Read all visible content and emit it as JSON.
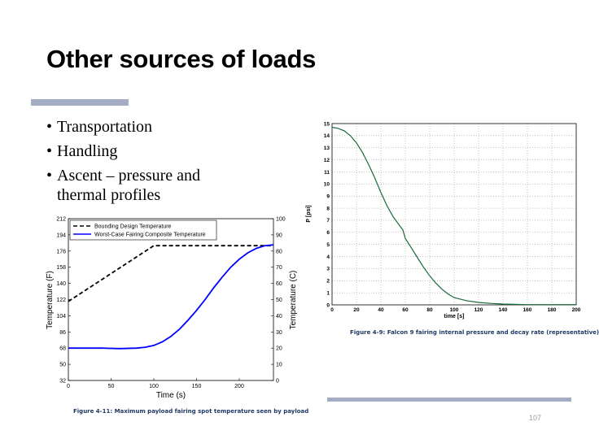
{
  "slide": {
    "title": "Other sources of loads",
    "bullets": [
      "Transportation",
      "Handling",
      "Ascent – pressure and thermal profiles"
    ],
    "page_number": "107"
  },
  "colors": {
    "accent": "#a4adc3",
    "pressure_line": "#1a6b3a",
    "worst_case": "#0000ff",
    "design": "#000000",
    "caption": "#1f3864"
  },
  "chart_data": [
    {
      "type": "line",
      "xlabel": "time [s]",
      "ylabel": "P [psi]",
      "xlim": [
        0,
        200
      ],
      "ylim": [
        0,
        15
      ],
      "x_ticks": [
        0,
        20,
        40,
        60,
        80,
        100,
        120,
        140,
        160,
        180,
        200
      ],
      "y_ticks": [
        0,
        1,
        2,
        3,
        4,
        5,
        6,
        7,
        8,
        9,
        10,
        11,
        12,
        13,
        14,
        15
      ],
      "grid": true,
      "series": [
        {
          "x": [
            0,
            5,
            10,
            15,
            20,
            25,
            30,
            35,
            40,
            45,
            50,
            55,
            58,
            60,
            65,
            70,
            75,
            80,
            85,
            90,
            95,
            100,
            110,
            120,
            130,
            140,
            150,
            160
          ],
          "y": [
            14.7,
            14.6,
            14.4,
            14.0,
            13.4,
            12.6,
            11.6,
            10.5,
            9.3,
            8.2,
            7.3,
            6.6,
            6.2,
            5.5,
            4.7,
            3.9,
            3.1,
            2.4,
            1.8,
            1.3,
            0.9,
            0.6,
            0.35,
            0.2,
            0.12,
            0.07,
            0.04,
            0.02
          ]
        },
        {
          "x": [
            160,
            200
          ],
          "y": [
            0.02,
            0.02
          ]
        }
      ],
      "caption": "Figure 4-9: Falcon 9 fairing internal pressure and decay rate (representative)"
    },
    {
      "type": "line",
      "xlabel": "Time (s)",
      "ylabel": "Temperature (F)",
      "y2label": "Temperature (C)",
      "xlim": [
        0,
        240
      ],
      "ylim": [
        32,
        212
      ],
      "y2lim": [
        0,
        100
      ],
      "x_ticks": [
        0,
        50,
        100,
        150,
        200
      ],
      "y_ticks": [
        32,
        50,
        68,
        86,
        104,
        122,
        140,
        158,
        176,
        194,
        212
      ],
      "y2_ticks": [
        0,
        10,
        20,
        30,
        40,
        50,
        60,
        70,
        80,
        90,
        100
      ],
      "legend": "top-left",
      "series": [
        {
          "name": "Bounding Design Temperature",
          "x": [
            0,
            100,
            240
          ],
          "y": [
            120,
            182,
            182
          ]
        },
        {
          "name": "Worst-Case Fairing Composite Temperature",
          "x": [
            0,
            20,
            40,
            60,
            80,
            90,
            100,
            110,
            120,
            130,
            140,
            150,
            160,
            170,
            180,
            190,
            200,
            210,
            220,
            230,
            240
          ],
          "y": [
            68,
            68,
            68,
            67.5,
            68,
            69,
            71,
            75,
            81,
            89,
            99,
            110,
            122,
            135,
            147,
            158,
            167,
            174,
            179,
            182,
            183
          ]
        }
      ],
      "caption": "Figure 4-11: Maximum payload fairing spot temperature seen by payload"
    }
  ]
}
